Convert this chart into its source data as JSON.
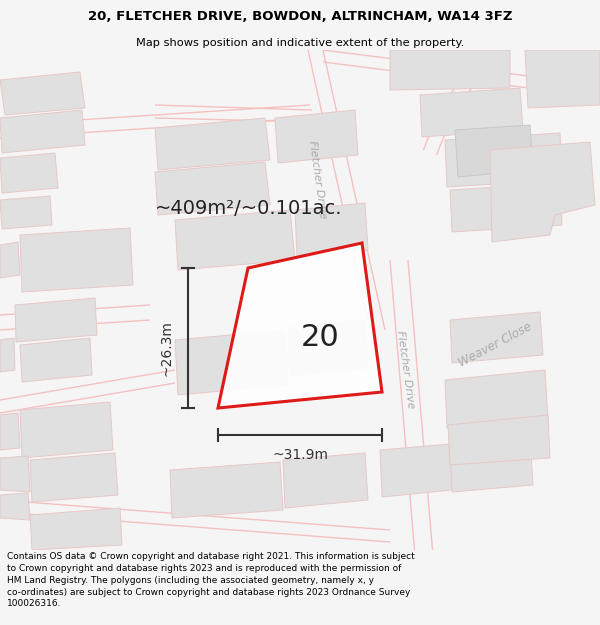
{
  "title_line1": "20, FLETCHER DRIVE, BOWDON, ALTRINCHAM, WA14 3FZ",
  "title_line2": "Map shows position and indicative extent of the property.",
  "footer_text": "Contains OS data © Crown copyright and database right 2021. This information is subject to Crown copyright and database rights 2023 and is reproduced with the permission of HM Land Registry. The polygons (including the associated geometry, namely x, y co-ordinates) are subject to Crown copyright and database rights 2023 Ordnance Survey 100026316.",
  "area_label": "~409m²/~0.101ac.",
  "number_label": "20",
  "width_label": "~31.9m",
  "height_label": "~26.3m",
  "bg_color": "#f5f5f5",
  "map_bg": "#ffffff",
  "road_outline": "#f5c0c0",
  "building_color": "#e0e0e0",
  "building_edge": "#cccccc",
  "plot_edge": "#dd0000",
  "plot_fill": "#ffffff",
  "dim_color": "#333333",
  "text_color": "#555555",
  "road_label_color": "#aaaaaa",
  "title_fontsize": 9.5,
  "sub_fontsize": 8.2,
  "footer_fontsize": 6.5,
  "area_fontsize": 14,
  "number_fontsize": 22,
  "dim_fontsize": 10,
  "road_label_fontsize": 8
}
